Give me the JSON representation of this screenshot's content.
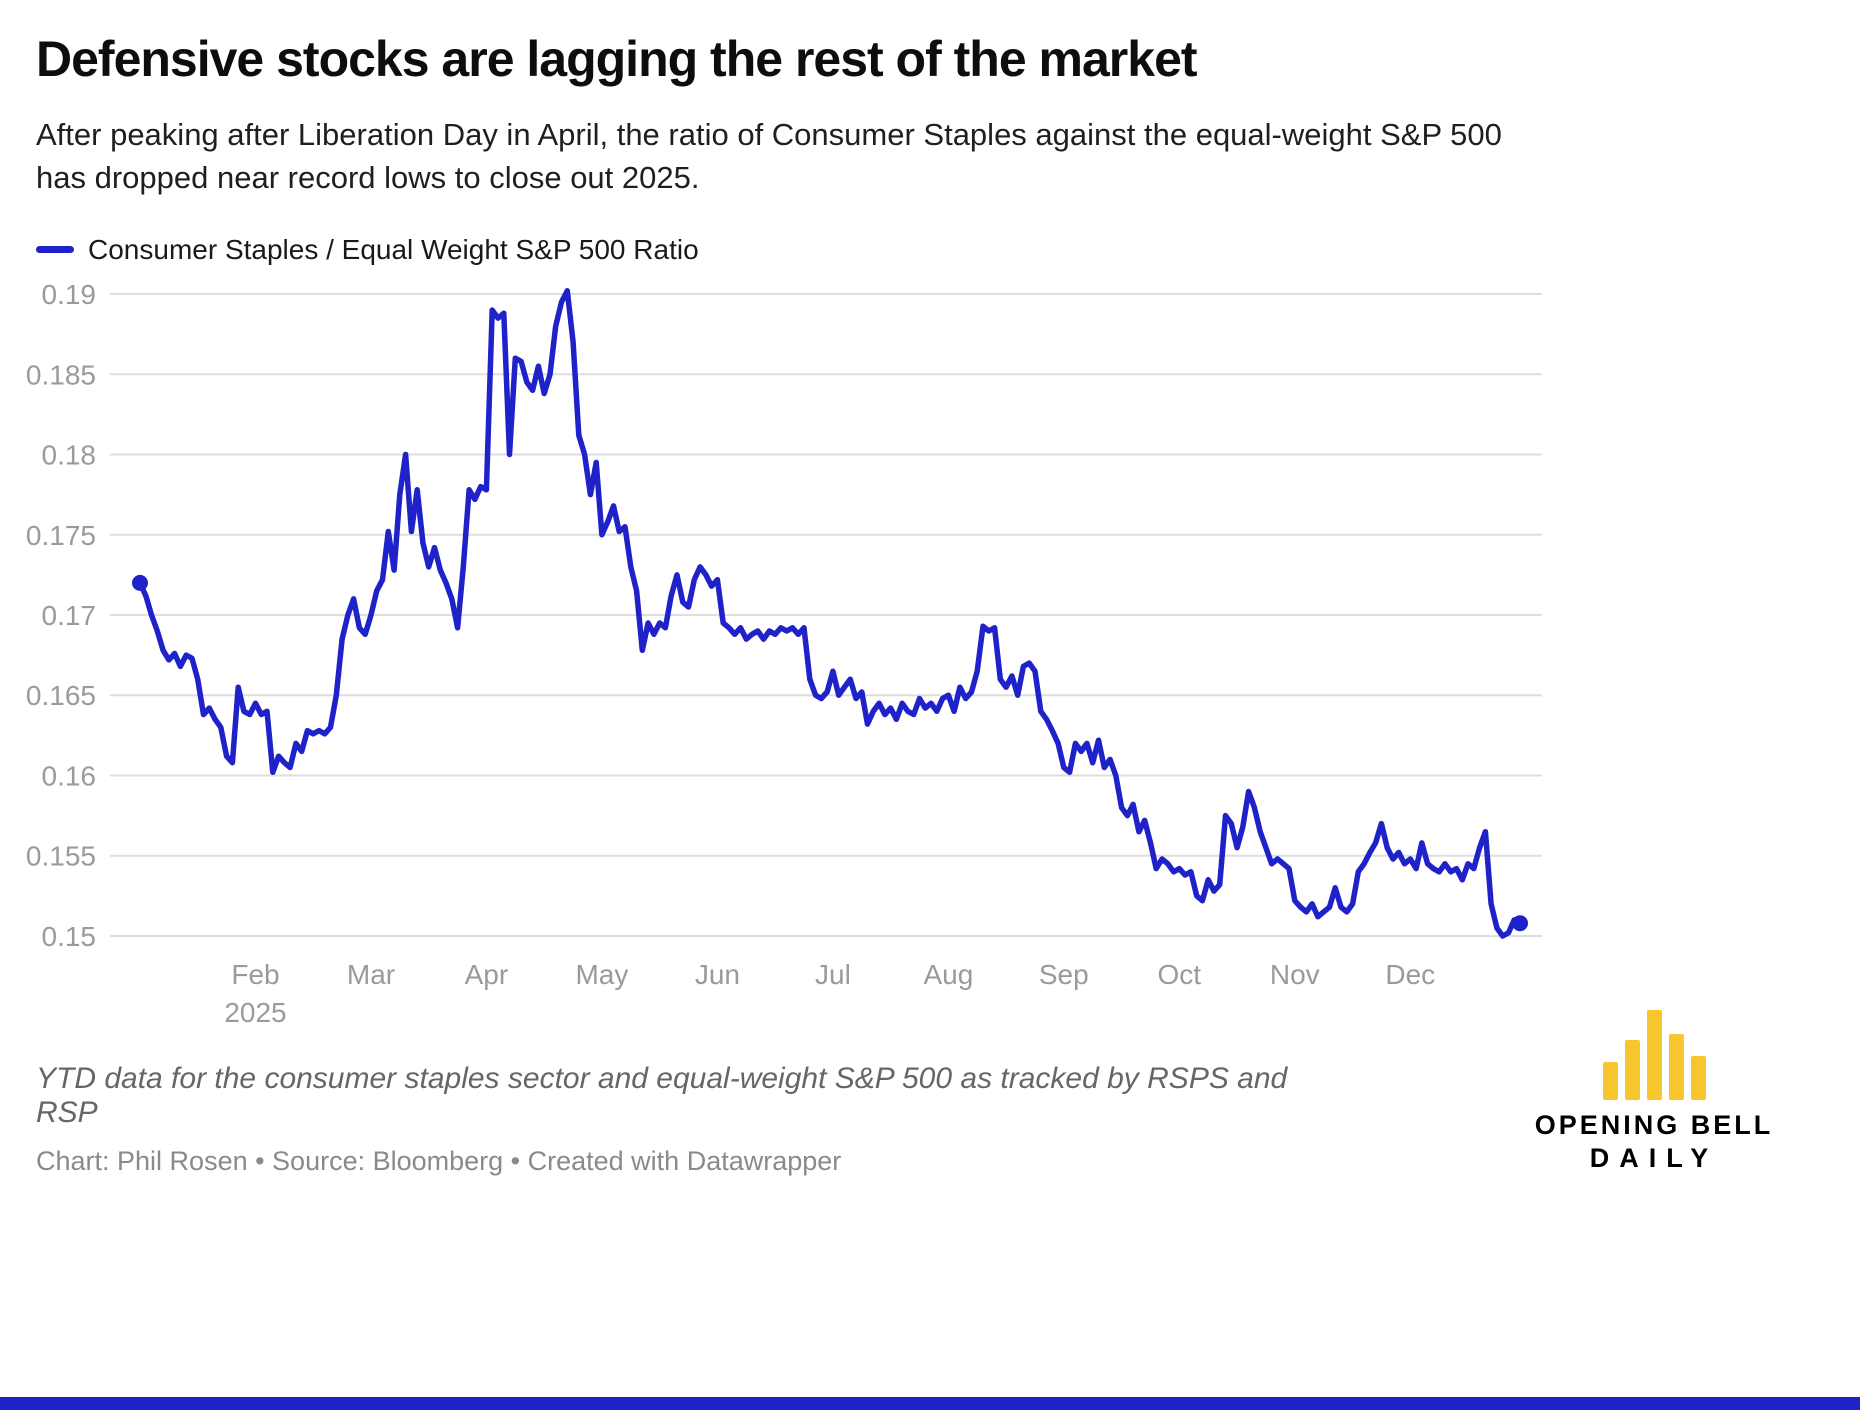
{
  "header": {
    "title": "Defensive stocks are lagging the rest of the market",
    "subtitle": "After peaking after Liberation Day in April, the ratio of Consumer Staples against the equal-weight S&P 500 has dropped near record lows to close out 2025."
  },
  "legend": {
    "label": "Consumer Staples / Equal Weight S&P 500 Ratio"
  },
  "footer": {
    "note": "YTD data for the consumer staples sector and equal-weight S&P 500 as tracked by RSPS and RSP",
    "credit": "Chart: Phil Rosen • Source: Bloomberg • Created with Datawrapper",
    "logo_line1": "OPENING BELL",
    "logo_line2": "DAILY"
  },
  "colors": {
    "line": "#1e22c8",
    "grid": "#dedede",
    "axis_text": "#9a9a9a",
    "logo_yellow": "#f7c62e",
    "bottom_bar": "#1e22c8"
  },
  "chart_data": {
    "type": "line",
    "title": "Defensive stocks are lagging the rest of the market",
    "xlabel": "",
    "ylabel": "",
    "ylim": [
      0.15,
      0.19
    ],
    "grid": "horizontal-only",
    "legend_position": "top-left",
    "y_ticks": [
      {
        "label": "0.19",
        "value": 0.19
      },
      {
        "label": "0.185",
        "value": 0.185
      },
      {
        "label": "0.18",
        "value": 0.18
      },
      {
        "label": "0.175",
        "value": 0.175
      },
      {
        "label": "0.17",
        "value": 0.17
      },
      {
        "label": "0.165",
        "value": 0.165
      },
      {
        "label": "0.16",
        "value": 0.16
      },
      {
        "label": "0.155",
        "value": 0.155
      },
      {
        "label": "0.15",
        "value": 0.15
      }
    ],
    "x_ticks": [
      {
        "label": "Feb",
        "sublabel": "2025",
        "index": 20
      },
      {
        "label": "Mar",
        "index": 40
      },
      {
        "label": "Apr",
        "index": 60
      },
      {
        "label": "May",
        "index": 80
      },
      {
        "label": "Jun",
        "index": 100
      },
      {
        "label": "Jul",
        "index": 120
      },
      {
        "label": "Aug",
        "index": 140
      },
      {
        "label": "Sep",
        "index": 160
      },
      {
        "label": "Oct",
        "index": 180
      },
      {
        "label": "Nov",
        "index": 200
      },
      {
        "label": "Dec",
        "index": 220
      }
    ],
    "series": [
      {
        "name": "Consumer Staples / Equal Weight S&P 500 Ratio",
        "values": [
          0.172,
          0.1712,
          0.17,
          0.169,
          0.1678,
          0.1672,
          0.1676,
          0.1668,
          0.1675,
          0.1673,
          0.166,
          0.1638,
          0.1642,
          0.1635,
          0.163,
          0.1612,
          0.1608,
          0.1655,
          0.164,
          0.1638,
          0.1645,
          0.1638,
          0.164,
          0.1602,
          0.1612,
          0.1608,
          0.1605,
          0.162,
          0.1615,
          0.1628,
          0.1626,
          0.1628,
          0.1626,
          0.163,
          0.165,
          0.1685,
          0.17,
          0.171,
          0.1692,
          0.1688,
          0.17,
          0.1715,
          0.1722,
          0.1752,
          0.1728,
          0.1775,
          0.18,
          0.1752,
          0.1778,
          0.1745,
          0.173,
          0.1742,
          0.1728,
          0.172,
          0.171,
          0.1692,
          0.173,
          0.1778,
          0.1772,
          0.178,
          0.1778,
          0.189,
          0.1885,
          0.1888,
          0.18,
          0.186,
          0.1858,
          0.1845,
          0.184,
          0.1855,
          0.1838,
          0.185,
          0.188,
          0.1895,
          0.1902,
          0.187,
          0.1812,
          0.18,
          0.1775,
          0.1795,
          0.175,
          0.1758,
          0.1768,
          0.1752,
          0.1755,
          0.173,
          0.1715,
          0.1678,
          0.1695,
          0.1688,
          0.1695,
          0.1692,
          0.1712,
          0.1725,
          0.1708,
          0.1705,
          0.1722,
          0.173,
          0.1725,
          0.1718,
          0.1722,
          0.1695,
          0.1692,
          0.1688,
          0.1692,
          0.1685,
          0.1688,
          0.169,
          0.1685,
          0.169,
          0.1688,
          0.1692,
          0.169,
          0.1692,
          0.1688,
          0.1692,
          0.166,
          0.165,
          0.1648,
          0.1652,
          0.1665,
          0.165,
          0.1655,
          0.166,
          0.1648,
          0.1652,
          0.1632,
          0.164,
          0.1645,
          0.1638,
          0.1642,
          0.1635,
          0.1645,
          0.164,
          0.1638,
          0.1648,
          0.1642,
          0.1645,
          0.164,
          0.1648,
          0.165,
          0.164,
          0.1655,
          0.1648,
          0.1652,
          0.1665,
          0.1693,
          0.169,
          0.1692,
          0.166,
          0.1655,
          0.1662,
          0.165,
          0.1668,
          0.167,
          0.1665,
          0.164,
          0.1635,
          0.1628,
          0.162,
          0.1605,
          0.1602,
          0.162,
          0.1615,
          0.162,
          0.1608,
          0.1622,
          0.1605,
          0.161,
          0.16,
          0.158,
          0.1575,
          0.1582,
          0.1565,
          0.1572,
          0.1558,
          0.1542,
          0.1548,
          0.1545,
          0.154,
          0.1542,
          0.1538,
          0.154,
          0.1525,
          0.1522,
          0.1535,
          0.1528,
          0.1532,
          0.1575,
          0.157,
          0.1555,
          0.1568,
          0.159,
          0.158,
          0.1565,
          0.1555,
          0.1545,
          0.1548,
          0.1545,
          0.1542,
          0.1522,
          0.1518,
          0.1515,
          0.152,
          0.1512,
          0.1515,
          0.1518,
          0.153,
          0.1518,
          0.1515,
          0.152,
          0.154,
          0.1545,
          0.1552,
          0.1558,
          0.157,
          0.1555,
          0.1548,
          0.1552,
          0.1545,
          0.1548,
          0.1542,
          0.1558,
          0.1545,
          0.1542,
          0.154,
          0.1545,
          0.154,
          0.1542,
          0.1535,
          0.1545,
          0.1542,
          0.1555,
          0.1565,
          0.152,
          0.1505,
          0.15,
          0.1502,
          0.151,
          0.1508
        ]
      }
    ],
    "markers": "dot at first and last point"
  }
}
